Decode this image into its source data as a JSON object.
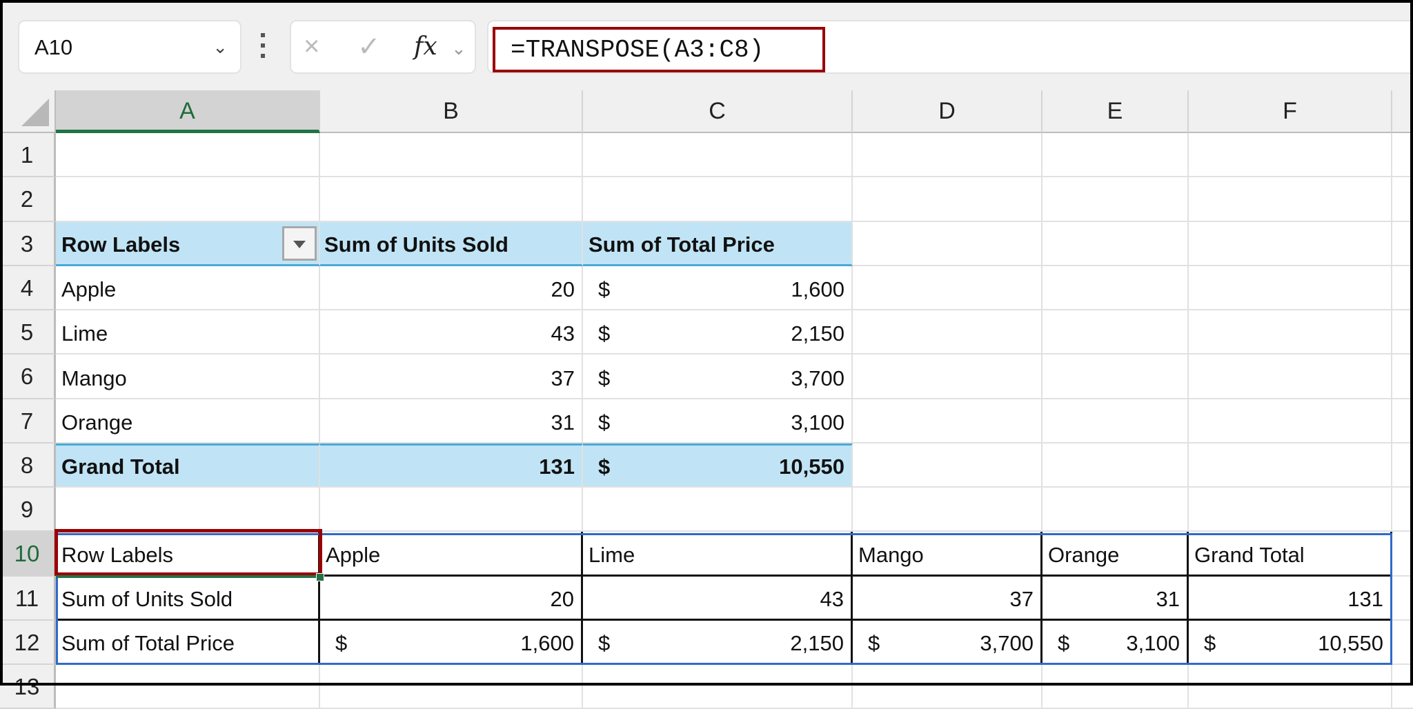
{
  "name_box": {
    "value": "A10",
    "icon": "chevron-down-icon"
  },
  "formula_bar": {
    "cancel_icon": "×",
    "enter_icon": "✓",
    "fx_label": "fx",
    "formula": "=TRANSPOSE(A3:C8)"
  },
  "columns": [
    "A",
    "B",
    "C",
    "D",
    "E",
    "F"
  ],
  "rows": [
    "1",
    "2",
    "3",
    "4",
    "5",
    "6",
    "7",
    "8",
    "9",
    "10",
    "11",
    "12",
    "13"
  ],
  "grid": {
    "r3": [
      "Row Labels",
      "Sum of Units Sold",
      "Sum of Total Price"
    ],
    "r4": [
      "Apple",
      "20",
      "$",
      "1,600"
    ],
    "r5": [
      "Lime",
      "43",
      "$",
      "2,150"
    ],
    "r6": [
      "Mango",
      "37",
      "$",
      "3,700"
    ],
    "r7": [
      "Orange",
      "31",
      "$",
      "3,100"
    ],
    "r8": [
      "Grand Total",
      "131",
      "$",
      "10,550"
    ],
    "r10": [
      "Row Labels",
      "Apple",
      "Lime",
      "Mango",
      "Orange",
      "Grand Total"
    ],
    "r11": [
      "Sum of Units Sold",
      "20",
      "43",
      "37",
      "31",
      "131"
    ],
    "r12": [
      "Sum of Total Price",
      "$",
      "1,600",
      "$",
      "2,150",
      "$",
      "3,700",
      "$",
      "3,100",
      "$",
      "10,550"
    ]
  },
  "colors": {
    "pivot_fill": "#c0e4f5",
    "pivot_line": "#49a9d8",
    "highlight": "#9b0000",
    "selection": "#217346",
    "range_border": "#2f6ac9"
  }
}
